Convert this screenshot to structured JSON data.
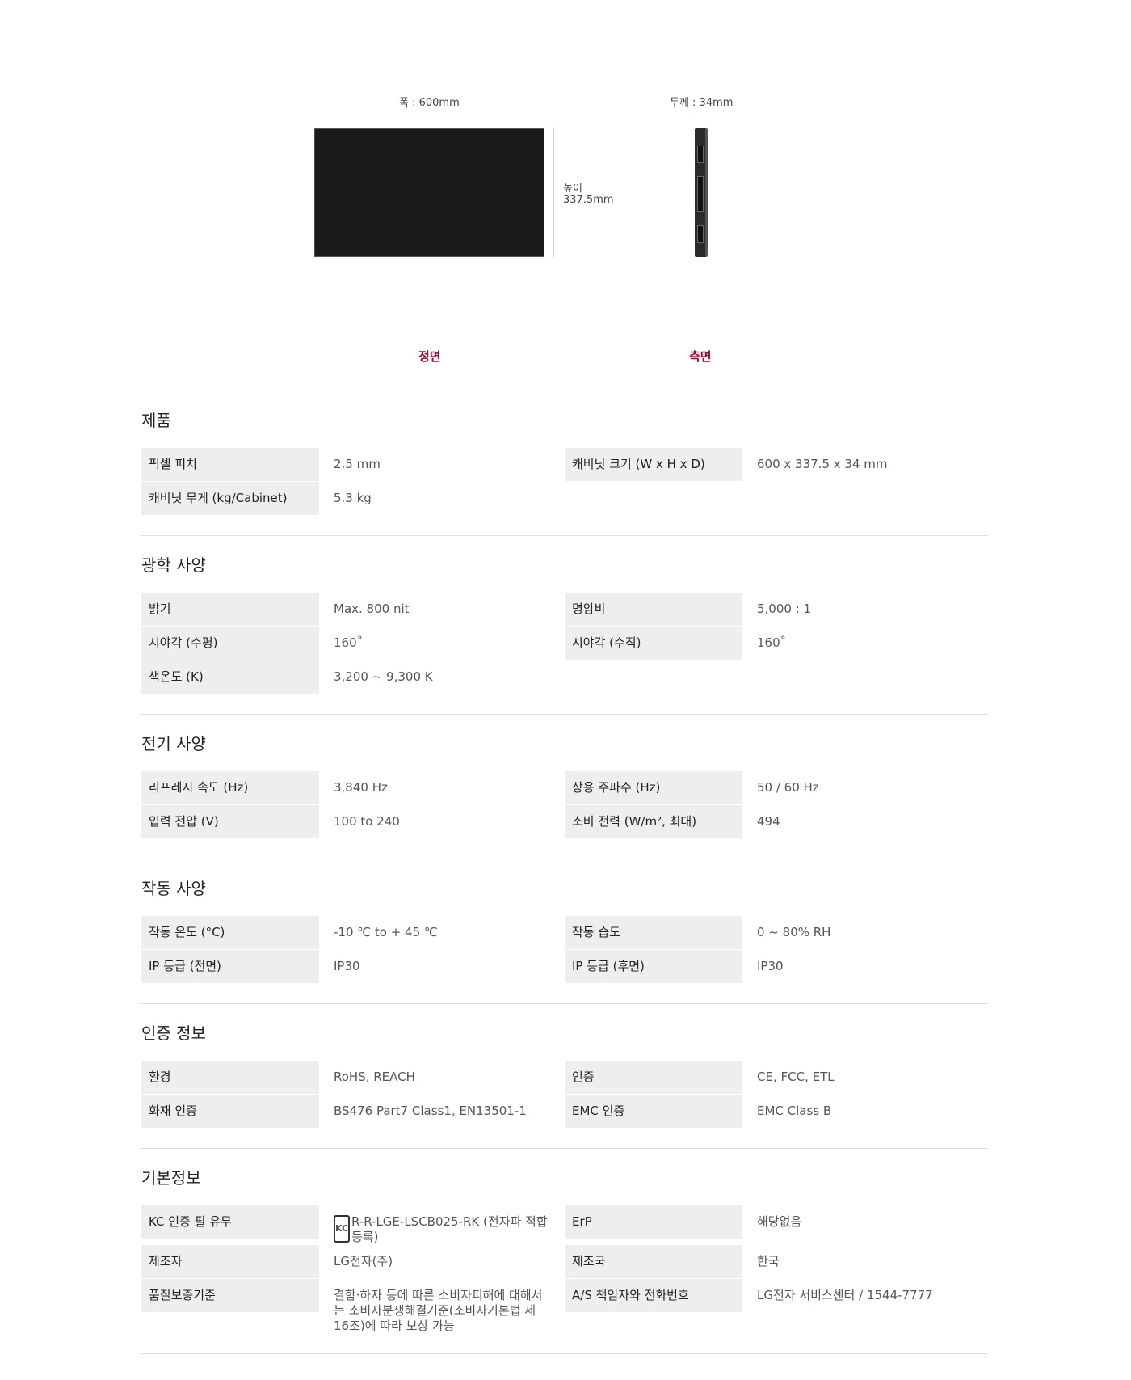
{
  "diagram": {
    "width_label": "폭 : 600mm",
    "height_label_1": "높이",
    "height_label_2": "337.5mm",
    "depth_label": "두께 : 34mm",
    "front_caption": "정면",
    "side_caption": "측면",
    "caption_color": "#a50034"
  },
  "sections": [
    {
      "title": "제품",
      "rows": [
        [
          {
            "label": "픽셀 피치",
            "value": "2.5 mm"
          },
          {
            "label": "캐비닛 크기 (W x H x D)",
            "value": "600 x 337.5 x 34 mm"
          }
        ],
        [
          {
            "label": "캐비닛 무게 (kg/Cabinet)",
            "value": "5.3 kg"
          }
        ]
      ]
    },
    {
      "title": "광학 사양",
      "rows": [
        [
          {
            "label": "밝기",
            "value": "Max. 800 nit"
          },
          {
            "label": "명암비",
            "value": "5,000 : 1"
          }
        ],
        [
          {
            "label": "시야각 (수평)",
            "value": "160˚"
          },
          {
            "label": "시야각 (수직)",
            "value": "160˚"
          }
        ],
        [
          {
            "label": "색온도 (K)",
            "value": "3,200 ~ 9,300 K"
          }
        ]
      ]
    },
    {
      "title": "전기 사양",
      "rows": [
        [
          {
            "label": "리프레시 속도 (Hz)",
            "value": "3,840 Hz"
          },
          {
            "label": "상용 주파수 (Hz)",
            "value": "50 / 60 Hz"
          }
        ],
        [
          {
            "label": "입력 전압 (V)",
            "value": "100 to 240"
          },
          {
            "label": "소비 전력 (W/m², 최대)",
            "value": "494"
          }
        ]
      ]
    },
    {
      "title": "작동 사양",
      "rows": [
        [
          {
            "label": "작동 온도 (°C)",
            "value": "-10 ℃ to + 45 ℃"
          },
          {
            "label": "작동 습도",
            "value": "0 ~ 80% RH"
          }
        ],
        [
          {
            "label": "IP 등급 (전면)",
            "value": "IP30"
          },
          {
            "label": "IP 등급 (후면)",
            "value": "IP30"
          }
        ]
      ]
    },
    {
      "title": "인증 정보",
      "rows": [
        [
          {
            "label": "환경",
            "value": "RoHS, REACH"
          },
          {
            "label": "인증",
            "value": "CE, FCC, ETL"
          }
        ],
        [
          {
            "label": "화재 인증",
            "value": "BS476 Part7 Class1, EN13501-1"
          },
          {
            "label": "EMC 인증",
            "value": "EMC Class B"
          }
        ]
      ]
    },
    {
      "title": "기본정보",
      "rows": [
        [
          {
            "label": "KC 인증 필 유무",
            "value": "R-R-LGE-LSCB025-RK (전자파 적합등록)",
            "icon": "kc-mark",
            "icon_text": "KC"
          },
          {
            "label": "ErP",
            "value": "해당없음"
          }
        ],
        [
          {
            "label": "제조자",
            "value": "LG전자(주)"
          },
          {
            "label": "제조국",
            "value": "한국"
          }
        ],
        [
          {
            "label": "품질보증기준",
            "value": "결함·하자 등에 따른 소비자피해에 대해서는 소비자분쟁해결기준(소비자기본법 제16조)에 따라 보상 가능"
          },
          {
            "label": "A/S 책임자와 전화번호",
            "value": "LG전자 서비스센터 / 1544-7777"
          }
        ]
      ]
    }
  ]
}
